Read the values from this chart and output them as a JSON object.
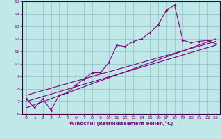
{
  "xlabel": "Windchill (Refroidissement éolien,°C)",
  "bg_color": "#c0e8e8",
  "grid_color": "#98c8c8",
  "line_color": "#800080",
  "xlim": [
    -0.5,
    23.5
  ],
  "ylim": [
    6,
    15
  ],
  "xticks": [
    0,
    1,
    2,
    3,
    4,
    5,
    6,
    7,
    8,
    9,
    10,
    11,
    12,
    13,
    14,
    15,
    16,
    17,
    18,
    19,
    20,
    21,
    22,
    23
  ],
  "yticks": [
    6,
    7,
    8,
    9,
    10,
    11,
    12,
    13,
    14,
    15
  ],
  "main_x": [
    0,
    1,
    2,
    3,
    4,
    5,
    6,
    7,
    8,
    9,
    10,
    11,
    12,
    13,
    14,
    15,
    16,
    17,
    18,
    19,
    20,
    21,
    22,
    23
  ],
  "main_y": [
    7.2,
    6.5,
    7.2,
    6.3,
    7.5,
    7.7,
    8.3,
    8.8,
    9.3,
    9.3,
    10.1,
    11.5,
    11.4,
    11.8,
    12.0,
    12.5,
    13.1,
    14.3,
    14.7,
    11.9,
    11.7,
    11.8,
    11.9,
    11.6
  ],
  "line1_x": [
    0,
    23
  ],
  "line1_y": [
    6.5,
    12.0
  ],
  "line2_x": [
    0,
    23
  ],
  "line2_y": [
    7.0,
    11.5
  ],
  "line3_x": [
    0,
    23
  ],
  "line3_y": [
    7.5,
    11.8
  ]
}
